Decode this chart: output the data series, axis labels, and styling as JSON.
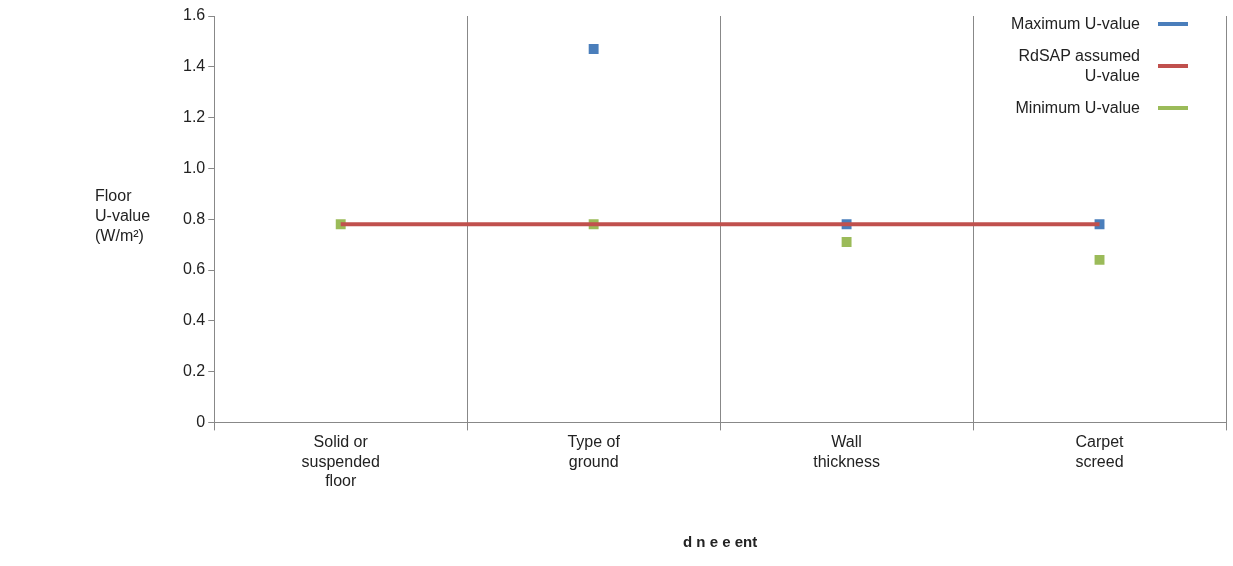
{
  "chart_data": {
    "type": "scatter",
    "xlabel": "d n e e ent",
    "ylabel": "Floor U-value (W/m²)",
    "categories": [
      "Solid or suspended floor",
      "Type of ground",
      "Wall thickness",
      "Carpet screed"
    ],
    "series": [
      {
        "name": "Maximum U-value",
        "marker": "square",
        "color": "#4a7ebb",
        "values": [
          null,
          1.47,
          0.78,
          0.78
        ]
      },
      {
        "name": "RdSAP assumed U-value",
        "type": "line",
        "color": "#c0504d",
        "marker": "none",
        "values": [
          0.78,
          0.78,
          0.78,
          0.78
        ]
      },
      {
        "name": "Minimum U-value",
        "marker": "square",
        "color": "#9bbb59",
        "values": [
          0.78,
          0.78,
          0.71,
          0.64
        ]
      }
    ],
    "ylim": [
      0,
      1.6
    ],
    "yticks": [
      0,
      0.2,
      0.4,
      0.6,
      0.8,
      {
        "value": 1.0,
        "label": "1.0"
      },
      1.2,
      1.4,
      1.6
    ],
    "grid": "x",
    "legend": "top right"
  }
}
